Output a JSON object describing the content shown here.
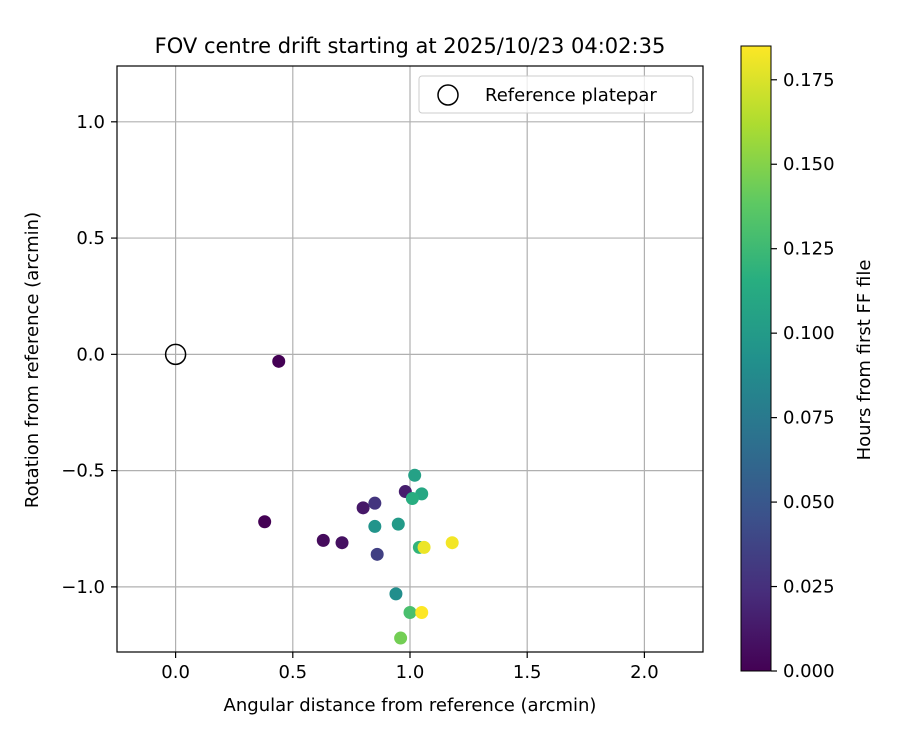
{
  "chart_data": {
    "type": "scatter",
    "title": "FOV centre drift starting at 2025/10/23 04:02:35",
    "xlabel": "Angular distance from reference (arcmin)",
    "ylabel": "Rotation from reference (arcmin)",
    "xlim": [
      -0.25,
      2.25
    ],
    "ylim": [
      -1.28,
      1.24
    ],
    "xticks": [
      0.0,
      0.5,
      1.0,
      1.5,
      2.0
    ],
    "xtick_labels": [
      "0.0",
      "0.5",
      "1.0",
      "1.5",
      "2.0"
    ],
    "yticks": [
      -1.0,
      -0.5,
      0.0,
      0.5,
      1.0
    ],
    "ytick_labels": [
      "−1.0",
      "−0.5",
      "0.0",
      "0.5",
      "1.0"
    ],
    "grid": true,
    "legend": {
      "placement": "top-right",
      "entries": [
        "Reference platepar"
      ]
    },
    "reference_point": {
      "x": 0.0,
      "y": 0.0
    },
    "colorbar": {
      "label": "Hours from first FF file",
      "colormap": "viridis",
      "range": [
        0.0,
        0.185
      ],
      "ticks": [
        0.0,
        0.025,
        0.05,
        0.075,
        0.1,
        0.125,
        0.15,
        0.175
      ],
      "tick_labels": [
        "0.000",
        "0.025",
        "0.050",
        "0.075",
        "0.100",
        "0.125",
        "0.150",
        "0.175"
      ]
    },
    "points": [
      {
        "x": 0.44,
        "y": -0.03,
        "c": 0.0
      },
      {
        "x": 0.38,
        "y": -0.72,
        "c": 0.0
      },
      {
        "x": 0.63,
        "y": -0.8,
        "c": 0.005
      },
      {
        "x": 0.71,
        "y": -0.81,
        "c": 0.008
      },
      {
        "x": 0.8,
        "y": -0.66,
        "c": 0.012
      },
      {
        "x": 0.98,
        "y": -0.59,
        "c": 0.015
      },
      {
        "x": 0.85,
        "y": -0.64,
        "c": 0.028
      },
      {
        "x": 0.86,
        "y": -0.86,
        "c": 0.035
      },
      {
        "x": 0.94,
        "y": -1.03,
        "c": 0.09
      },
      {
        "x": 0.85,
        "y": -0.74,
        "c": 0.095
      },
      {
        "x": 0.95,
        "y": -0.73,
        "c": 0.1
      },
      {
        "x": 1.02,
        "y": -0.52,
        "c": 0.105
      },
      {
        "x": 1.05,
        "y": -0.6,
        "c": 0.11
      },
      {
        "x": 1.01,
        "y": -0.62,
        "c": 0.115
      },
      {
        "x": 1.04,
        "y": -0.83,
        "c": 0.12
      },
      {
        "x": 1.0,
        "y": -1.11,
        "c": 0.13
      },
      {
        "x": 0.96,
        "y": -1.22,
        "c": 0.145
      },
      {
        "x": 1.05,
        "y": -1.11,
        "c": 0.185
      },
      {
        "x": 1.06,
        "y": -0.83,
        "c": 0.18
      },
      {
        "x": 1.18,
        "y": -0.81,
        "c": 0.182
      }
    ]
  },
  "colors": {
    "grid": "#b0b0b0",
    "axis": "#000000",
    "legend_border": "#cccccc"
  }
}
